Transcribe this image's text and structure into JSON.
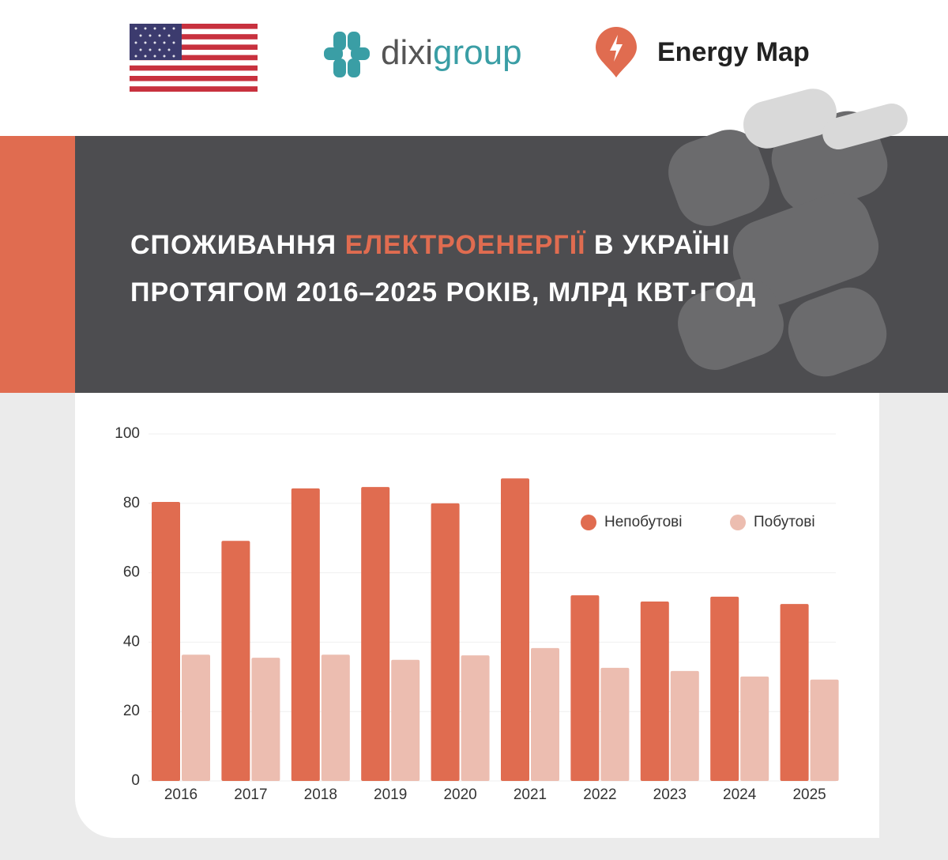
{
  "header": {
    "logo_dixi": "dixi",
    "logo_group": "group",
    "logo_energy_map": "Energy Map"
  },
  "chart_data": {
    "type": "bar",
    "title": [
      "СПОЖИВАННЯ",
      "ЕЛЕКТРОЕНЕРГІЇ",
      "В УКРАЇНІ",
      "ПРОТЯГОМ 2016–2025 РОКІВ, МЛРД КВТ·ГОД"
    ],
    "categories": [
      "2016",
      "2017",
      "2018",
      "2019",
      "2020",
      "2021",
      "2022",
      "2023",
      "2024",
      "2025"
    ],
    "series": [
      {
        "name": "Непобутові",
        "color": "#e06c50",
        "values": [
          80.4,
          69.2,
          84.3,
          84.7,
          80.0,
          87.2,
          53.5,
          51.7,
          53.1,
          51.0
        ]
      },
      {
        "name": "Побутові",
        "color": "#ecbdb0",
        "values": [
          36.4,
          35.5,
          36.4,
          34.9,
          36.2,
          38.3,
          32.6,
          31.7,
          30.1,
          29.2
        ]
      }
    ],
    "ylim": [
      0,
      100
    ],
    "yticks": [
      0,
      20,
      40,
      60,
      80,
      100
    ],
    "grid": true,
    "legend": "top-right"
  }
}
